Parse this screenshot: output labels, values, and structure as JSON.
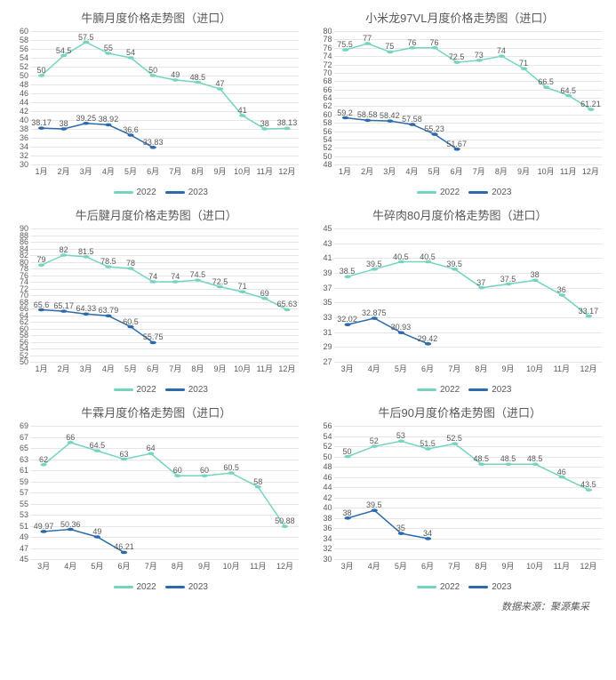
{
  "colors": {
    "s2022": "#74d4c0",
    "s2023": "#2b6aab",
    "grid": "#e6e6e6",
    "axis": "#bfbfbf",
    "text": "#595959"
  },
  "legend": {
    "a": "2022",
    "b": "2023"
  },
  "footer": "数据来源：聚源集采",
  "charts": [
    {
      "title": "牛腩月度价格走势图（进口）",
      "ymin": 30,
      "ymax": 60,
      "ystep": 2,
      "categories": [
        "1月",
        "2月",
        "3月",
        "4月",
        "5月",
        "6月",
        "7月",
        "8月",
        "9月",
        "10月",
        "11月",
        "12月"
      ],
      "series2022": [
        50,
        54.5,
        57.5,
        55,
        54,
        50,
        49,
        48.5,
        47,
        41,
        38,
        38.13
      ],
      "series2023": [
        38.17,
        38,
        39.25,
        38.92,
        36.6,
        33.83,
        null,
        null,
        null,
        null,
        null,
        null
      ],
      "labels2022": [
        "50",
        "54.5",
        "57.5",
        "55",
        "54",
        "50",
        "49",
        "48.5",
        "47",
        "41",
        "38",
        "38.13"
      ],
      "labels2023": [
        "38.17",
        "38",
        "39.25",
        "38.92",
        "36.6",
        "33.83",
        "",
        "",
        "",
        "",
        "",
        ""
      ]
    },
    {
      "title": "小米龙97VL月度价格走势图（进口）",
      "ymin": 48,
      "ymax": 80,
      "ystep": 2,
      "categories": [
        "1月",
        "2月",
        "3月",
        "4月",
        "5月",
        "6月",
        "7月",
        "8月",
        "9月",
        "10月",
        "11月",
        "12月"
      ],
      "series2022": [
        75.5,
        77,
        75,
        76,
        76,
        72.5,
        73,
        74,
        71,
        66.5,
        64.5,
        61.21
      ],
      "series2023": [
        59.2,
        58.58,
        58.42,
        57.58,
        55.23,
        51.67,
        null,
        null,
        null,
        null,
        null,
        null
      ],
      "labels2022": [
        "75.5",
        "77",
        "75",
        "76",
        "76",
        "72.5",
        "73",
        "74",
        "71",
        "66.5",
        "64.5",
        "61.21"
      ],
      "labels2023": [
        "59.2",
        "58.58",
        "58.42",
        "57.58",
        "55.23",
        "51.67",
        "",
        "",
        "",
        "",
        "",
        ""
      ]
    },
    {
      "title": "牛后腱月度价格走势图（进口）",
      "ymin": 50,
      "ymax": 90,
      "ystep": 2,
      "categories": [
        "1月",
        "2月",
        "3月",
        "4月",
        "5月",
        "6月",
        "7月",
        "8月",
        "9月",
        "10月",
        "11月",
        "12月"
      ],
      "series2022": [
        79,
        82,
        81.5,
        78.5,
        78,
        74,
        74,
        74.5,
        72.5,
        71,
        69,
        65.63
      ],
      "series2023": [
        65.6,
        65.17,
        64.33,
        63.79,
        60.5,
        55.75,
        null,
        null,
        null,
        null,
        null,
        null
      ],
      "labels2022": [
        "79",
        "82",
        "81.5",
        "78.5",
        "78",
        "74",
        "74",
        "74.5",
        "72.5",
        "71",
        "69",
        "65.63"
      ],
      "labels2023": [
        "65.6",
        "65.17",
        "64.33",
        "63.79",
        "60.5",
        "55.75",
        "",
        "",
        "",
        "",
        "",
        ""
      ]
    },
    {
      "title": "牛碎肉80月度价格走势图（进口）",
      "ymin": 27,
      "ymax": 45,
      "ystep": 2,
      "categories": [
        "3月",
        "4月",
        "5月",
        "6月",
        "7月",
        "8月",
        "9月",
        "10月",
        "11月",
        "12月"
      ],
      "series2022": [
        38.5,
        39.5,
        40.5,
        40.5,
        39.5,
        37,
        37.5,
        38,
        36,
        33.17
      ],
      "series2023": [
        32.02,
        32.875,
        30.93,
        29.42,
        null,
        null,
        null,
        null,
        null,
        null
      ],
      "labels2022": [
        "38.5",
        "39.5",
        "40.5",
        "40.5",
        "39.5",
        "37",
        "37.5",
        "38",
        "36",
        "33.17"
      ],
      "labels2023": [
        "32.02",
        "32.875",
        "30.93",
        "29.42",
        "",
        "",
        "",
        "",
        "",
        ""
      ]
    },
    {
      "title": "牛霖月度价格走势图（进口）",
      "ymin": 45,
      "ymax": 69,
      "ystep": 2,
      "categories": [
        "3月",
        "4月",
        "5月",
        "6月",
        "7月",
        "8月",
        "9月",
        "10月",
        "11月",
        "12月"
      ],
      "series2022": [
        62,
        66,
        64.5,
        63,
        64,
        60,
        60,
        60.5,
        58,
        50.88
      ],
      "series2023": [
        49.97,
        50.36,
        49,
        46.21,
        null,
        null,
        null,
        null,
        null,
        null
      ],
      "labels2022": [
        "62",
        "66",
        "64.5",
        "63",
        "64",
        "60",
        "60",
        "60.5",
        "58",
        "50.88"
      ],
      "labels2023": [
        "49.97",
        "50.36",
        "49",
        "46.21",
        "",
        "",
        "",
        "",
        "",
        ""
      ]
    },
    {
      "title": "牛后90月度价格走势图（进口）",
      "ymin": 30,
      "ymax": 56,
      "ystep": 2,
      "categories": [
        "3月",
        "4月",
        "5月",
        "6月",
        "7月",
        "8月",
        "9月",
        "10月",
        "11月",
        "12月"
      ],
      "series2022": [
        50,
        52,
        53,
        51.5,
        52.5,
        48.5,
        48.5,
        48.5,
        46,
        43.5
      ],
      "series2023": [
        38,
        39.5,
        35,
        34,
        null,
        null,
        null,
        null,
        null,
        null
      ],
      "labels2022": [
        "50",
        "52",
        "53",
        "51.5",
        "52.5",
        "48.5",
        "48.5",
        "48.5",
        "46",
        "43.5"
      ],
      "labels2023": [
        "38",
        "39.5",
        "35",
        "34",
        "",
        "",
        "",
        "",
        "",
        ""
      ]
    }
  ]
}
